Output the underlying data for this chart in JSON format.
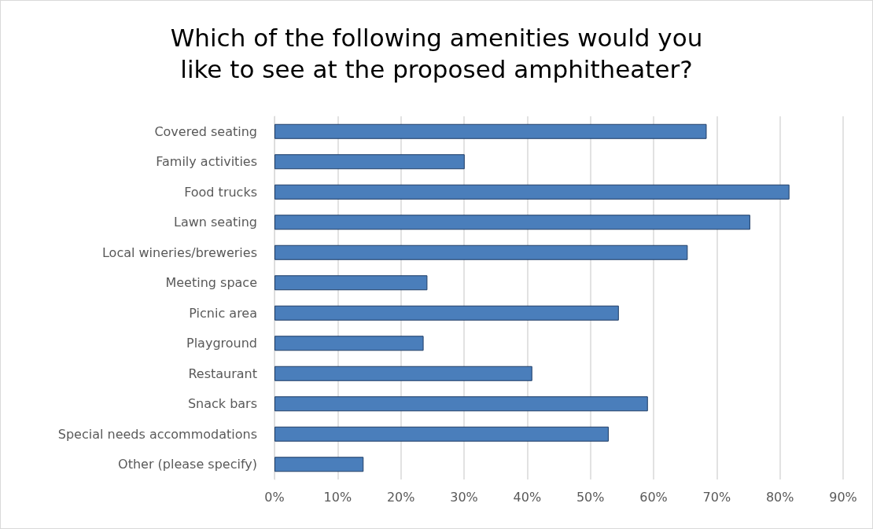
{
  "chart_data": {
    "type": "bar",
    "orientation": "horizontal",
    "title": "Which of the following amenities would you\nlike to see at the proposed amphitheater?",
    "categories": [
      "Covered seating",
      "Family activities",
      "Food trucks",
      "Lawn seating",
      "Local wineries/breweries",
      "Meeting space",
      "Picnic area",
      "Playground",
      "Restaurant",
      "Snack bars",
      "Special needs accommodations",
      "Other (please specify)"
    ],
    "values": [
      68.4,
      30.1,
      81.5,
      75.3,
      65.4,
      24.2,
      54.5,
      23.6,
      40.8,
      59.1,
      52.9,
      14.1
    ],
    "color": "#4a7ebb",
    "xlim": [
      0,
      90
    ],
    "xticks": [
      {
        "value": 0,
        "label": "0%"
      },
      {
        "value": 10,
        "label": "10%"
      },
      {
        "value": 20,
        "label": "20%"
      },
      {
        "value": 30,
        "label": "30%"
      },
      {
        "value": 40,
        "label": "40%"
      },
      {
        "value": 50,
        "label": "50%"
      },
      {
        "value": 60,
        "label": "60%"
      },
      {
        "value": 70,
        "label": "70%"
      },
      {
        "value": 80,
        "label": "80%"
      },
      {
        "value": 90,
        "label": "90%"
      }
    ],
    "grid": "x"
  }
}
